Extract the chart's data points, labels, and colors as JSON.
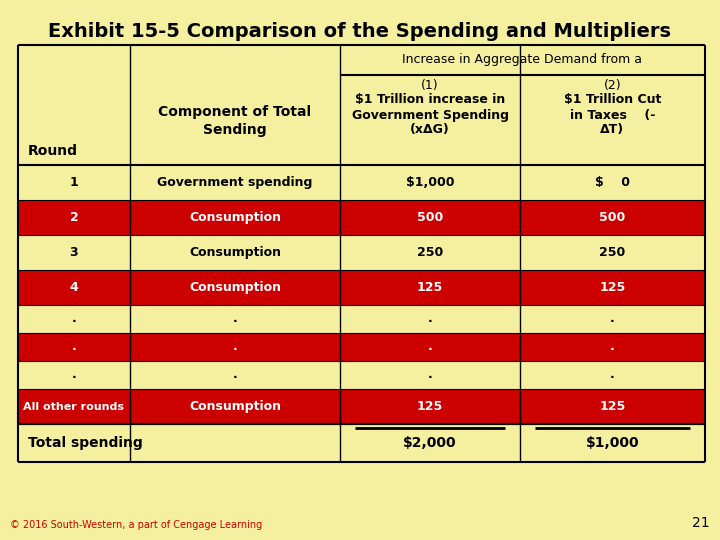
{
  "title": "Exhibit 15-5 Comparison of the Spending and Multipliers",
  "bg_color": "#F5F0A0",
  "red_color": "#CC0000",
  "white_color": "#FFFFFF",
  "black_color": "#000000",
  "header_text_1": "Increase in Aggregate Demand from a",
  "col0_header": "Round",
  "col1_header_line1": "Component of Total",
  "col1_header_line2": "Sending",
  "col2_header_line1": "(1)",
  "col2_header_line2": "$1 Trillion increase in",
  "col2_header_line3": "Government Spending",
  "col2_header_line4": "(xΔG)",
  "col3_header_line1": "(2)",
  "col3_header_line2": "$1 Trillion Cut",
  "col3_header_line3": "in Taxes    (-",
  "col3_header_line4": "ΔT)",
  "rows": [
    {
      "round": "1",
      "component": "Government spending",
      "col2": "$1,000",
      "col3": "$    0",
      "red": false,
      "dot": false
    },
    {
      "round": "2",
      "component": "Consumption",
      "col2": "500",
      "col3": "500",
      "red": true,
      "dot": false
    },
    {
      "round": "3",
      "component": "Consumption",
      "col2": "250",
      "col3": "250",
      "red": false,
      "dot": false
    },
    {
      "round": "4",
      "component": "Consumption",
      "col2": "125",
      "col3": "125",
      "red": true,
      "dot": false
    },
    {
      "round": ".",
      "component": ".",
      "col2": ".",
      "col3": ".",
      "red": false,
      "dot": true
    },
    {
      "round": ".",
      "component": ".",
      "col2": ".",
      "col3": ".",
      "red": true,
      "dot": true
    },
    {
      "round": ".",
      "component": ".",
      "col2": ".",
      "col3": ".",
      "red": false,
      "dot": true
    },
    {
      "round": "All other rounds",
      "component": "Consumption",
      "col2": "125",
      "col3": "125",
      "red": true,
      "dot": false
    }
  ],
  "total_label": "Total spending",
  "total_col2": "$2,000",
  "total_col3": "$1,000",
  "footer": "© 2016 South-Western, a part of Cengage Learning",
  "page_num": "21"
}
